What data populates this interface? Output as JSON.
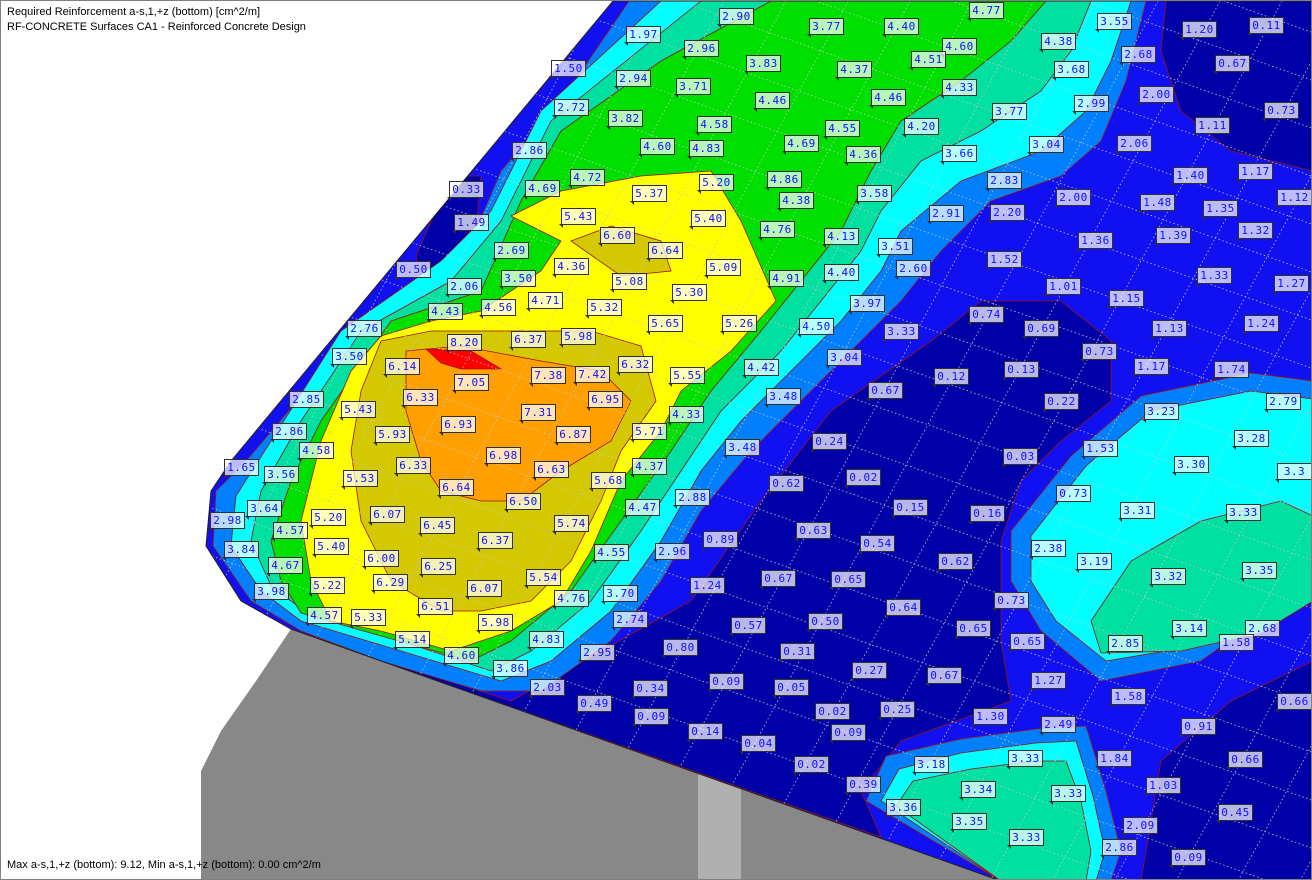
{
  "header": {
    "line1": "Required Reinforcement a-s,1,+z (bottom) [cm^2/m]",
    "line2": "RF-CONCRETE Surfaces CA1 - Reinforced Concrete Design"
  },
  "footer": {
    "summary": "Max a-s,1,+z (bottom): 9.12, Min a-s,1,+z (bottom): 0.00 cm^2/m"
  },
  "colors": {
    "dark_blue": "#0000a8",
    "blue": "#1010f0",
    "medium_blue": "#0080ff",
    "cyan": "#00ffff",
    "sea_green": "#00e0a0",
    "green": "#00e000",
    "yellow": "#ffff00",
    "olive": "#d4c800",
    "orange": "#ffa000",
    "red": "#ff0000",
    "support_gray": "#888888",
    "label_text": "#1010ff"
  },
  "values": [
    "2.90",
    "3.77",
    "4.40",
    "4.77",
    "3.55",
    "0.11",
    "1.97",
    "2.96",
    "4.60",
    "4.38",
    "1.20",
    "1.50",
    "2.94",
    "3.83",
    "4.37",
    "4.51",
    "2.68",
    "3.68",
    "0.67",
    "3.71",
    "4.33",
    "2.00",
    "2.72",
    "3.82",
    "4.46",
    "4.46",
    "3.77",
    "2.99",
    "0.73",
    "4.58",
    "4.55",
    "4.20",
    "1.11",
    "2.86",
    "4.60",
    "4.83",
    "4.69",
    "4.36",
    "3.66",
    "3.04",
    "2.06",
    "4.72",
    "4.86",
    "2.83",
    "1.40",
    "1.17",
    "0.33",
    "4.69",
    "5.37",
    "5.20",
    "4.38",
    "3.58",
    "2.00",
    "1.12",
    "1.49",
    "5.43",
    "5.40",
    "2.91",
    "2.20",
    "1.48",
    "1.35",
    "6.60",
    "6.64",
    "4.76",
    "4.13",
    "1.36",
    "1.39",
    "1.32",
    "2.69",
    "3.51",
    "1.52",
    "1.33",
    "0.50",
    "4.36",
    "5.08",
    "5.09",
    "4.91",
    "4.40",
    "2.60",
    "2.06",
    "3.50",
    "5.30",
    "1.01",
    "1.15",
    "1.27",
    "4.43",
    "4.56",
    "4.71",
    "5.32",
    "3.97",
    "0.74",
    "2.76",
    "5.65",
    "5.26",
    "4.50",
    "3.33",
    "0.69",
    "1.13",
    "1.24",
    "8.20",
    "6.37",
    "5.98",
    "0.73",
    "3.50",
    "6.14",
    "6.32",
    "3.04",
    "1.17",
    "1.74",
    "7.05",
    "7.38",
    "7.42",
    "5.55",
    "4.42",
    "0.67",
    "0.12",
    "0.13",
    "6.33",
    "6.95",
    "3.48",
    "0.22",
    "2.85",
    "5.43",
    "7.31",
    "4.33",
    "3.23",
    "2.79",
    "2.86",
    "5.93",
    "6.93",
    "6.87",
    "5.71",
    "0.24",
    "3.28",
    "3.48",
    "1.53",
    "4.58",
    "6.98",
    "0.03",
    "1.65",
    "3.56",
    "6.33",
    "6.63",
    "4.37",
    "0.02",
    "3.30",
    "3.3",
    "5.53",
    "5.68",
    "0.62",
    "0.73",
    "6.64",
    "2.88",
    "3.64",
    "6.50",
    "4.47",
    "0.15",
    "0.16",
    "3.31",
    "3.33",
    "2.98",
    "5.20",
    "6.07",
    "6.45",
    "5.74",
    "0.63",
    "4.57",
    "6.37",
    "0.89",
    "0.54",
    "2.38",
    "3.84",
    "5.40",
    "2.96",
    "4.55",
    "6.00",
    "6.25",
    "5.54",
    "0.67",
    "0.65",
    "0.62",
    "3.19",
    "3.32",
    "3.35",
    "4.67",
    "5.22",
    "6.29",
    "6.07",
    "1.24",
    "4.76",
    "3.70",
    "0.73",
    "3.98",
    "6.51",
    "0.64",
    "4.57",
    "5.33",
    "5.98",
    "2.74",
    "0.57",
    "0.50",
    "0.65",
    "2.85",
    "3.14",
    "2.68",
    "5.14",
    "4.83",
    "2.95",
    "0.80",
    "0.31",
    "0.65",
    "1.58",
    "4.60",
    "3.86",
    "0.27",
    "0.67",
    "1.27",
    "2.03",
    "0.34",
    "0.09",
    "0.05",
    "1.58",
    "0.66",
    "0.49",
    "0.25",
    "0.09",
    "0.02",
    "1.30",
    "0.91",
    "2.49",
    "0.14",
    "0.09",
    "0.04",
    "1.84",
    "0.66",
    "3.18",
    "3.33",
    "0.02",
    "3.34",
    "1.03",
    "3.33",
    "0.39",
    "3.36",
    "3.35",
    "0.45",
    "3.33",
    "2.09",
    "2.86",
    "0.09"
  ]
}
